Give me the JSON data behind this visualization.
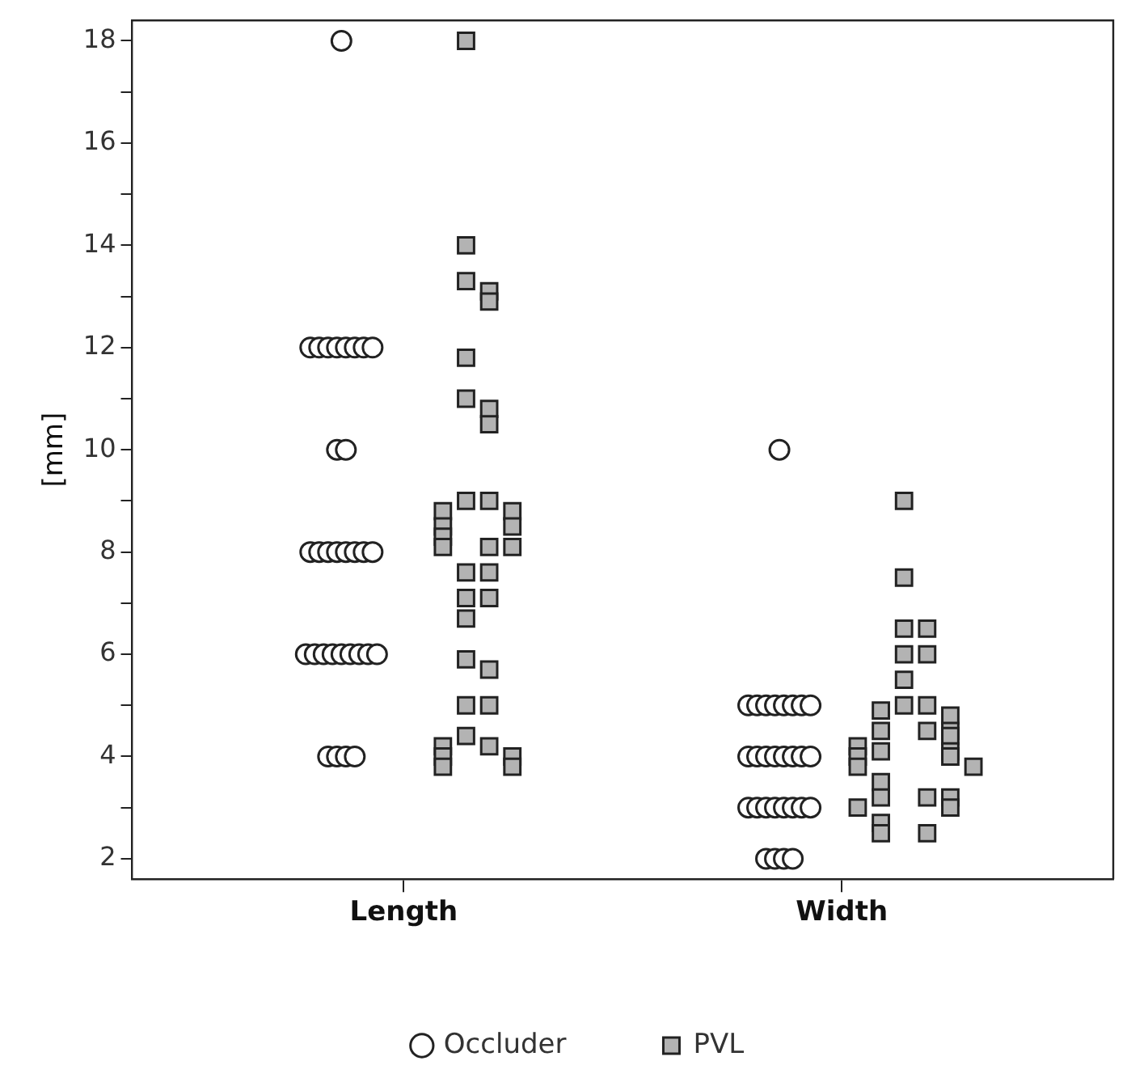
{
  "chart_data": {
    "type": "scatter",
    "ylabel": "[mm]",
    "categories": [
      "Length",
      "Width"
    ],
    "ylim": [
      1.6,
      18.4
    ],
    "yticks": [
      2,
      {
        "value": 3,
        "label": null
      },
      4,
      {
        "value": 5,
        "label": null
      },
      6,
      {
        "value": 7,
        "label": null
      },
      8,
      {
        "value": 9,
        "label": null
      },
      10,
      {
        "value": 11,
        "label": null
      },
      12,
      {
        "value": 13,
        "label": null
      },
      14,
      {
        "value": 15,
        "label": null
      },
      16,
      {
        "value": 17,
        "label": null
      },
      18
    ],
    "grid": false,
    "legend": "bottom",
    "series": [
      {
        "name": "Occluder",
        "color": "#ffffff",
        "marker": "circle",
        "x": [
          "Length",
          "Length",
          "Length",
          "Length",
          "Length",
          "Length",
          "Length",
          "Length",
          "Length",
          "Length",
          "Length",
          "Length",
          "Length",
          "Length",
          "Length",
          "Length",
          "Length",
          "Length",
          "Length",
          "Length",
          "Length",
          "Length",
          "Length",
          "Length",
          "Length",
          "Length",
          "Length",
          "Length",
          "Length",
          "Length",
          "Length",
          "Length",
          "Width",
          "Width",
          "Width",
          "Width",
          "Width",
          "Width",
          "Width",
          "Width",
          "Width",
          "Width",
          "Width",
          "Width",
          "Width",
          "Width",
          "Width",
          "Width",
          "Width",
          "Width",
          "Width",
          "Width",
          "Width",
          "Width",
          "Width",
          "Width",
          "Width",
          "Width",
          "Width",
          "Width",
          "Width"
        ],
        "values": [
          18,
          12,
          12,
          12,
          12,
          12,
          12,
          12,
          12,
          10,
          10,
          8,
          8,
          8,
          8,
          8,
          8,
          8,
          8,
          6,
          6,
          6,
          6,
          6,
          6,
          6,
          6,
          6,
          4,
          4,
          4,
          4,
          10,
          5,
          5,
          5,
          5,
          5,
          5,
          5,
          5,
          4,
          4,
          4,
          4,
          4,
          4,
          4,
          4,
          3,
          3,
          3,
          3,
          3,
          3,
          3,
          3,
          2,
          2,
          2,
          2
        ]
      },
      {
        "name": "PVL",
        "color": "#b3b3b3",
        "marker": "square",
        "x": [
          "Length",
          "Length",
          "Length",
          "Length",
          "Length",
          "Length",
          "Length",
          "Length",
          "Length",
          "Length",
          "Length",
          "Length",
          "Length",
          "Length",
          "Length",
          "Length",
          "Length",
          "Length",
          "Length",
          "Length",
          "Length",
          "Length",
          "Length",
          "Length",
          "Length",
          "Length",
          "Length",
          "Length",
          "Length",
          "Length",
          "Length",
          "Length",
          "Length",
          "Length",
          "Length",
          "Width",
          "Width",
          "Width",
          "Width",
          "Width",
          "Width",
          "Width",
          "Width",
          "Width",
          "Width",
          "Width",
          "Width",
          "Width",
          "Width",
          "Width",
          "Width",
          "Width",
          "Width",
          "Width",
          "Width",
          "Width",
          "Width",
          "Width",
          "Width",
          "Width",
          "Width",
          "Width",
          "Width",
          "Width",
          "Width",
          "Width"
        ],
        "values": [
          18,
          14,
          13.3,
          13.1,
          12.9,
          11.8,
          11,
          10.8,
          10.5,
          9,
          9,
          8.8,
          8.8,
          8.5,
          8.5,
          8.3,
          8.1,
          8.1,
          8.1,
          7.6,
          7.6,
          7.1,
          7.1,
          6.7,
          5.9,
          5.7,
          5,
          5,
          4.4,
          4.2,
          4.2,
          4,
          4,
          3.8,
          3.8,
          9,
          7.5,
          6.5,
          6.5,
          6,
          6,
          5.5,
          5,
          5,
          4.9,
          4.8,
          4.5,
          4.5,
          4.5,
          4.4,
          4.2,
          4.1,
          4.1,
          4,
          4,
          3.8,
          3.8,
          3.5,
          3.2,
          3.2,
          3.2,
          3,
          3,
          2.7,
          2.5,
          2.5
        ]
      }
    ]
  }
}
